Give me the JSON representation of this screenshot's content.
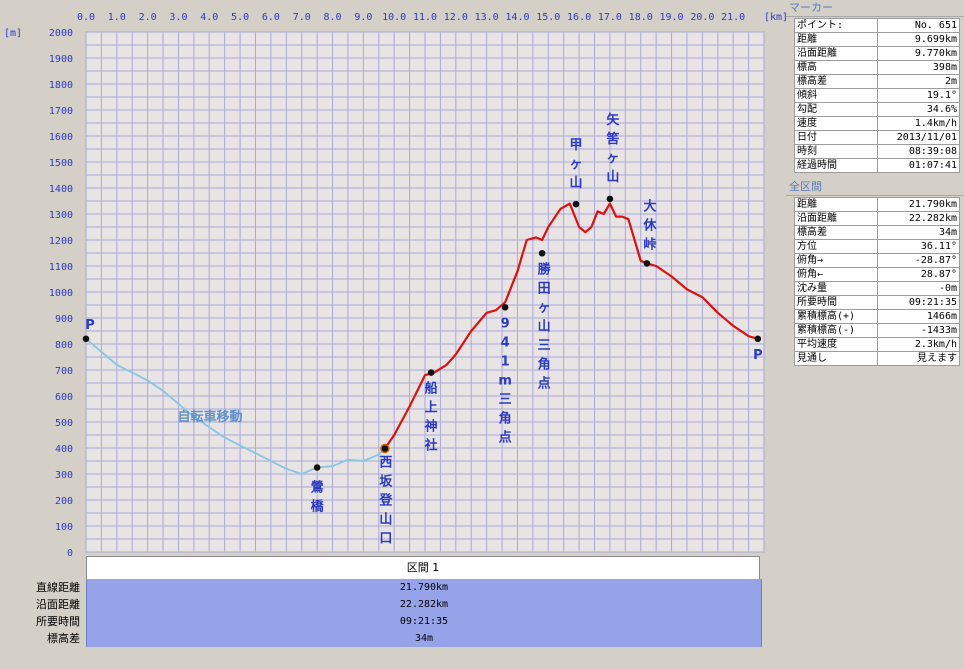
{
  "marker_panel": {
    "title": "マーカー",
    "rows": [
      {
        "label": "ポイント:",
        "value": "No. 651"
      },
      {
        "label": "距離",
        "value": "9.699km"
      },
      {
        "label": "沿面距離",
        "value": "9.770km"
      },
      {
        "label": "標高",
        "value": "398m"
      },
      {
        "label": "標高差",
        "value": "2m"
      },
      {
        "label": "傾斜",
        "value": "19.1°"
      },
      {
        "label": "勾配",
        "value": "34.6%"
      },
      {
        "label": "速度",
        "value": "1.4km/h"
      },
      {
        "label": "日付",
        "value": "2013/11/01"
      },
      {
        "label": "時刻",
        "value": "08:39:08"
      },
      {
        "label": "経過時間",
        "value": "01:07:41"
      }
    ]
  },
  "total_panel": {
    "title": "全区間",
    "rows": [
      {
        "label": "距離",
        "value": "21.790km"
      },
      {
        "label": "沿面距離",
        "value": "22.282km"
      },
      {
        "label": "標高差",
        "value": "34m"
      },
      {
        "label": "方位",
        "value": "36.11°"
      },
      {
        "label": "俯角→",
        "value": "-28.87°"
      },
      {
        "label": "俯角←",
        "value": "28.87°"
      },
      {
        "label": "沈み量",
        "value": "-0m"
      },
      {
        "label": "所要時間",
        "value": "09:21:35"
      },
      {
        "label": "累積標高(+)",
        "value": "1466m"
      },
      {
        "label": "累積標高(-)",
        "value": "-1433m"
      },
      {
        "label": "平均速度",
        "value": "2.3km/h"
      },
      {
        "label": "見通し",
        "value": "見えます"
      }
    ]
  },
  "section_tab": "区間 1",
  "summary": [
    {
      "label": "直線距離",
      "value": "21.790km"
    },
    {
      "label": "沿面距離",
      "value": "22.282km"
    },
    {
      "label": "所要時間",
      "value": "09:21:35"
    },
    {
      "label": "標高差",
      "value": "34m"
    }
  ],
  "chart_data": {
    "type": "line",
    "x_unit": "[km]",
    "y_unit": "[m]",
    "x_ticks": [
      "0.0",
      "1.0",
      "2.0",
      "3.0",
      "4.0",
      "5.0",
      "6.0",
      "7.0",
      "8.0",
      "9.0",
      "10.0",
      "11.0",
      "12.0",
      "13.0",
      "14.0",
      "15.0",
      "16.0",
      "17.0",
      "18.0",
      "19.0",
      "20.0",
      "21.0"
    ],
    "y_ticks": [
      "2000",
      "1900",
      "1800",
      "1700",
      "1600",
      "1500",
      "1400",
      "1300",
      "1200",
      "1100",
      "1000",
      "900",
      "800",
      "700",
      "600",
      "500",
      "400",
      "300",
      "200",
      "100",
      "0"
    ],
    "xlim": [
      0,
      22.0
    ],
    "ylim": [
      0,
      2000
    ],
    "colors": {
      "bike": "#87c6e6",
      "hike": "#e01010",
      "grid": "#a9a8d8",
      "plot_bg": "#e8e4e4",
      "labels": "#2a39c8"
    },
    "series": [
      {
        "name": "自転車移動",
        "x": [
          0.0,
          0.5,
          1.0,
          1.5,
          2.0,
          2.5,
          3.0,
          3.5,
          4.0,
          4.5,
          5.0,
          5.5,
          6.0,
          6.5,
          7.0,
          7.5,
          8.0,
          8.5,
          9.0,
          9.5,
          9.7
        ],
        "y": [
          820,
          770,
          720,
          690,
          660,
          620,
          570,
          520,
          480,
          440,
          410,
          380,
          350,
          320,
          300,
          325,
          330,
          355,
          350,
          375,
          398
        ]
      },
      {
        "name": "",
        "x": [
          9.7,
          10.0,
          10.5,
          11.0,
          11.3,
          11.7,
          12.0,
          12.5,
          13.0,
          13.3,
          13.6,
          14.0,
          14.3,
          14.6,
          14.8,
          15.0,
          15.4,
          15.7,
          16.0,
          16.2,
          16.4,
          16.6,
          16.8,
          17.0,
          17.2,
          17.4,
          17.6,
          17.8,
          18.0,
          18.2,
          18.5,
          19.0,
          19.5,
          20.0,
          20.5,
          21.0,
          21.5,
          21.8
        ],
        "y": [
          398,
          450,
          560,
          680,
          690,
          720,
          760,
          850,
          920,
          930,
          960,
          1080,
          1200,
          1210,
          1200,
          1250,
          1320,
          1340,
          1250,
          1230,
          1250,
          1310,
          1300,
          1340,
          1290,
          1290,
          1280,
          1200,
          1120,
          1110,
          1100,
          1060,
          1010,
          980,
          920,
          870,
          830,
          820
        ]
      }
    ],
    "points": [
      {
        "label": "P",
        "x": 0.0,
        "y": 820
      },
      {
        "label": "鶯橋",
        "x": 7.5,
        "y": 325
      },
      {
        "label": "西坂登山口",
        "x": 9.7,
        "y": 398
      },
      {
        "label": "船上神社",
        "x": 11.2,
        "y": 690
      },
      {
        "label": "941m三角点",
        "x": 13.6,
        "y": 941
      },
      {
        "label": "勝田ヶ山三角点",
        "x": 14.8,
        "y": 1149
      },
      {
        "label": "甲ヶ山",
        "x": 15.9,
        "y": 1338
      },
      {
        "label": "矢筈ヶ山",
        "x": 17.0,
        "y": 1358
      },
      {
        "label": "大休峠",
        "x": 18.2,
        "y": 1110
      },
      {
        "label": "P",
        "x": 21.8,
        "y": 820
      }
    ]
  }
}
